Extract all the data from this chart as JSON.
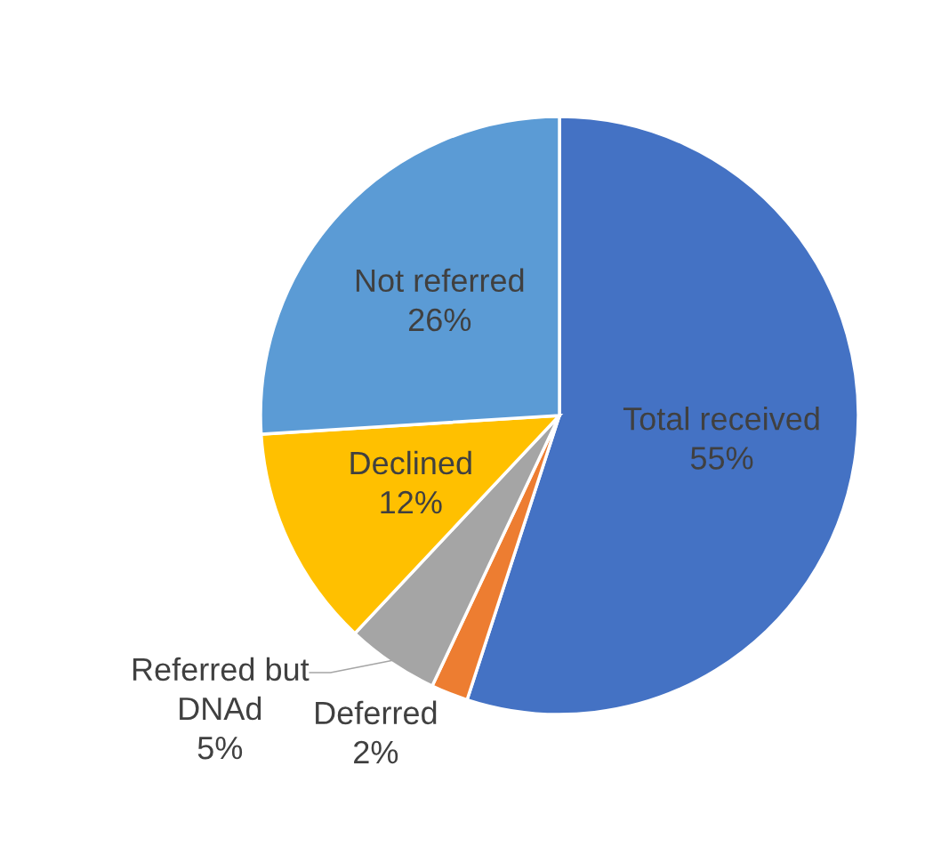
{
  "chart_data": {
    "type": "pie",
    "categories": [
      "Total received",
      "Deferred",
      "Referred but DNAd",
      "Declined",
      "Not referred"
    ],
    "values": [
      55,
      2,
      5,
      12,
      26
    ],
    "value_labels": [
      "55%",
      "2%",
      "5%",
      "12%",
      "26%"
    ],
    "colors": [
      "#4472c4",
      "#ed7d31",
      "#a5a5a5",
      "#ffc000",
      "#5b9bd5"
    ]
  }
}
